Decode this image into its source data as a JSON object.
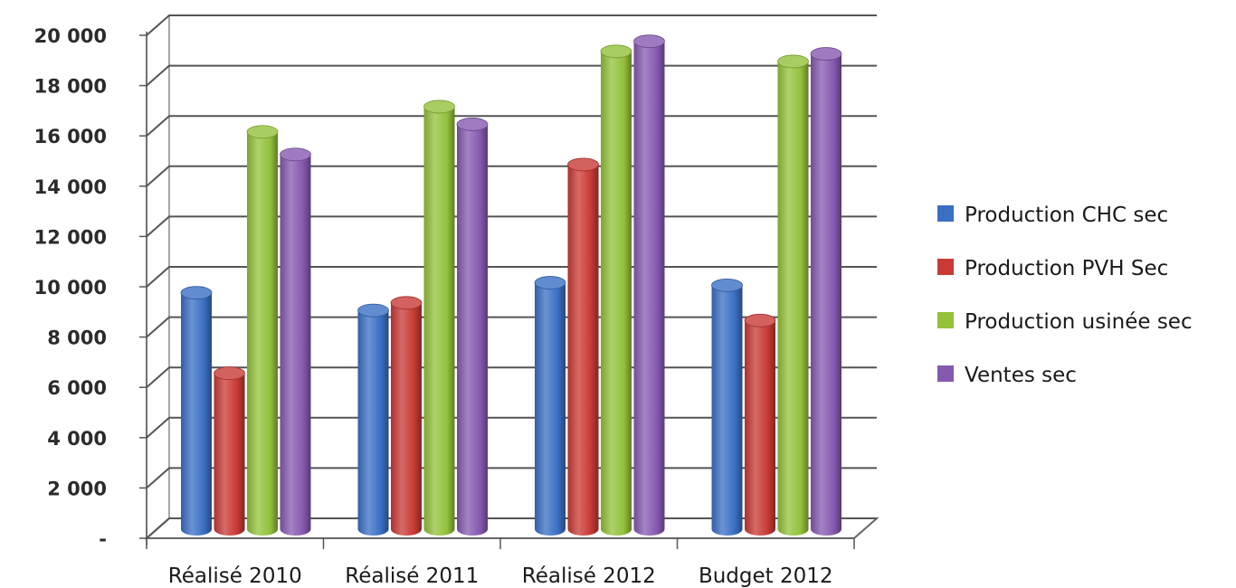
{
  "chart_data": {
    "type": "bar",
    "categories": [
      "Réalisé 2010",
      "Réalisé 2011",
      "Réalisé 2012",
      "Budget 2012"
    ],
    "series": [
      {
        "name": "Production CHC sec",
        "color": "#3a6fc4",
        "values": [
          9400,
          8700,
          9800,
          9700
        ]
      },
      {
        "name": "Production PVH Sec",
        "color": "#c83a35",
        "values": [
          6200,
          9000,
          14500,
          8300
        ]
      },
      {
        "name": "Production usinée sec",
        "color": "#93c13a",
        "values": [
          15800,
          16800,
          19000,
          18600
        ]
      },
      {
        "name": "Ventes sec",
        "color": "#8659b0",
        "values": [
          14900,
          16100,
          19400,
          18900
        ]
      }
    ],
    "ylim": [
      0,
      20000
    ],
    "yticks": [
      0,
      2000,
      4000,
      6000,
      8000,
      10000,
      12000,
      14000,
      16000,
      18000,
      20000
    ],
    "ytick_labels": [
      "-",
      "2 000",
      "4 000",
      "6 000",
      "8 000",
      "10 000",
      "12 000",
      "14 000",
      "16 000",
      "18 000",
      "20 000"
    ],
    "grid": true,
    "legend": "right",
    "style": "3d-cylinder"
  }
}
